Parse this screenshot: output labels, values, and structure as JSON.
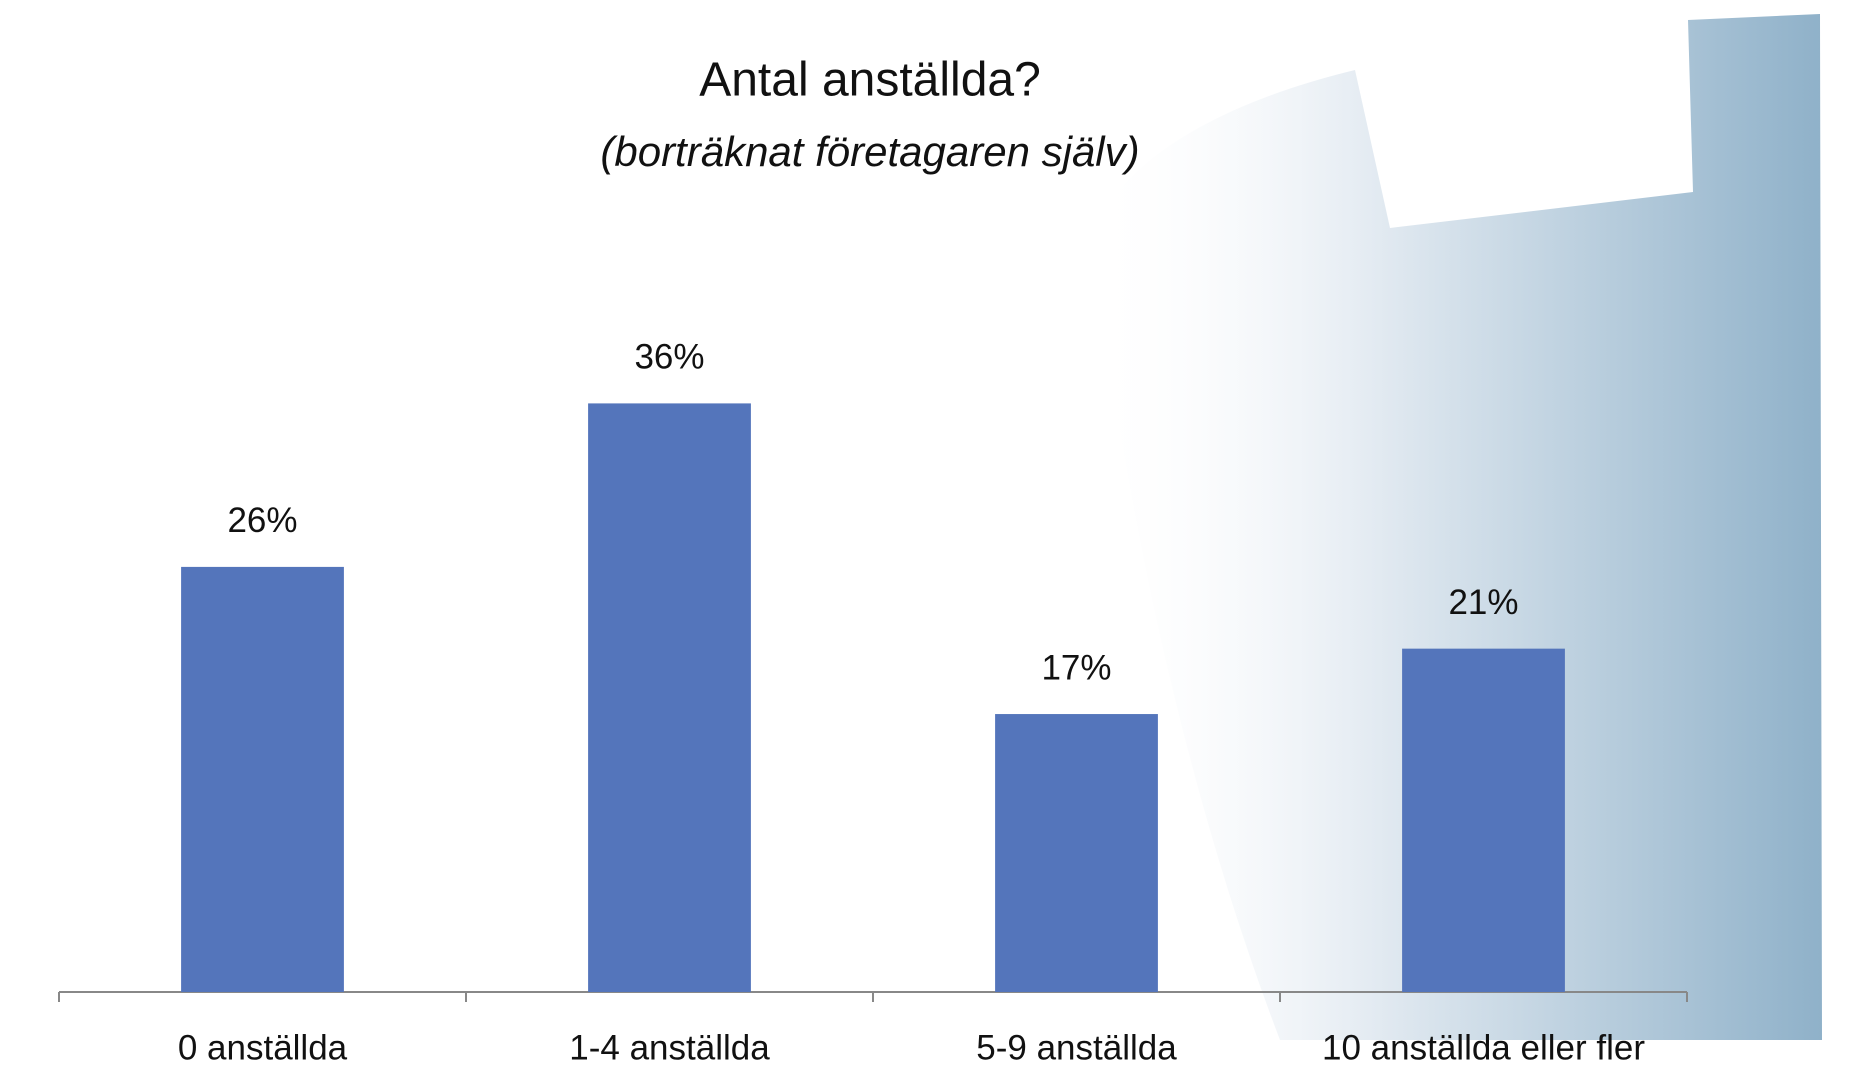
{
  "chart_data": {
    "type": "bar",
    "title": "Antal anställda?",
    "subtitle": "(borträknat företagaren själv)",
    "categories": [
      "0 anställda",
      "1-4 anställda",
      "5-9 anställda",
      "10 anställda eller fler"
    ],
    "values": [
      26,
      36,
      17,
      21
    ],
    "value_labels": [
      "26%",
      "36%",
      "17%",
      "21%"
    ],
    "color": "#5475bb"
  }
}
